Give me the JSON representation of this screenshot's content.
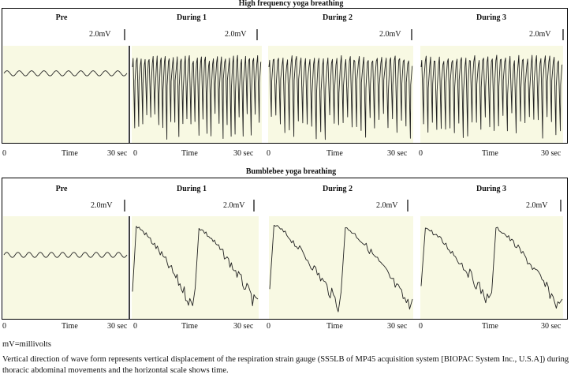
{
  "figure": {
    "footnote_units": "mV=millivolts",
    "caption": "Vertical direction of wave form represents vertical displacement of the respiration strain gauge (SS5LB of MP45 acquisition system [BIOPAC System Inc., U.S.A]) during thoracic abdominal movements and the horizontal scale shows time."
  },
  "chart_data": [
    {
      "type": "line",
      "title": "High frequency yoga breathing",
      "scale_label": "2.0mV",
      "xlabel": "Time",
      "x_start_label": "0",
      "x_end_label": "30 sec",
      "background_color": "#f8f9e3",
      "segments": [
        {
          "name": "Pre",
          "pattern": "sine",
          "cycles": 10,
          "amplitude_mV": 0.4
        },
        {
          "name": "During 1",
          "pattern": "spike",
          "cycles": 32,
          "amplitude_mV": 4.5
        },
        {
          "name": "During 2",
          "pattern": "spike",
          "cycles": 32,
          "amplitude_mV": 4.5
        },
        {
          "name": "During 3",
          "pattern": "spike",
          "cycles": 32,
          "amplitude_mV": 4.5
        }
      ]
    },
    {
      "type": "line",
      "title": "Bumblebee yoga breathing",
      "scale_label": "2.0mV",
      "xlabel": "Time",
      "x_start_label": "0",
      "x_end_label": "30 sec",
      "background_color": "#f8f9e3",
      "segments": [
        {
          "name": "Pre",
          "pattern": "sine",
          "cycles": 11,
          "amplitude_mV": 0.4
        },
        {
          "name": "During 1",
          "pattern": "hum",
          "cycles": 2,
          "amplitude_mV": 3.8
        },
        {
          "name": "During 2",
          "pattern": "hum",
          "cycles": 2,
          "amplitude_mV": 4.0
        },
        {
          "name": "During 3",
          "pattern": "hum",
          "cycles": 2,
          "amplitude_mV": 3.8
        }
      ]
    }
  ]
}
